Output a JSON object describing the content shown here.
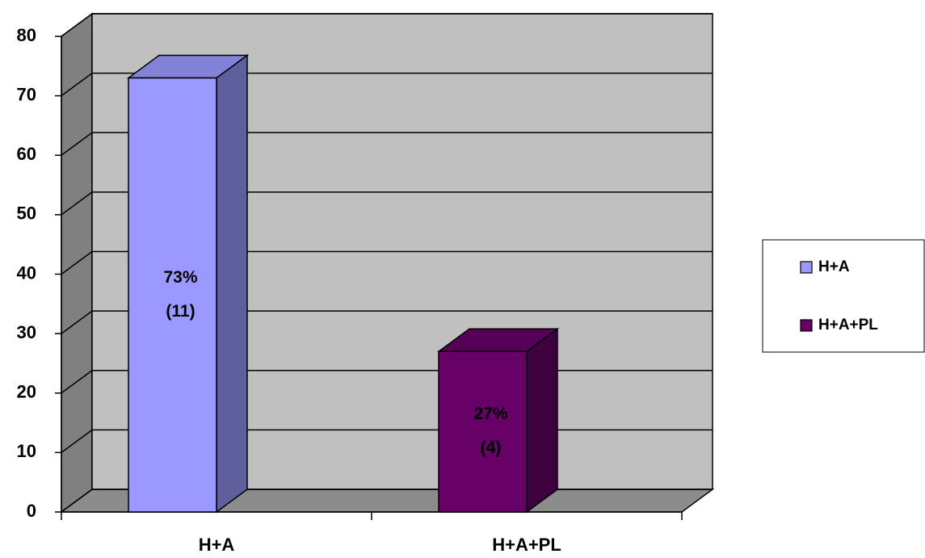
{
  "chart_data": {
    "type": "bar3d",
    "categories": [
      "H+A",
      "H+A+PL"
    ],
    "series": [
      {
        "name": "H+A",
        "color": "#9999ff",
        "values": [
          73,
          null
        ],
        "value_labels": [
          [
            "73%",
            "(11)"
          ],
          null
        ]
      },
      {
        "name": "H+A+PL",
        "color": "#660066",
        "values": [
          null,
          27
        ],
        "value_labels": [
          null,
          [
            "27%",
            "(4)"
          ]
        ]
      }
    ],
    "ylim": [
      0,
      80
    ],
    "yticks": [
      0,
      10,
      20,
      30,
      40,
      50,
      60,
      70,
      80
    ],
    "grid": true,
    "legend": "right"
  }
}
